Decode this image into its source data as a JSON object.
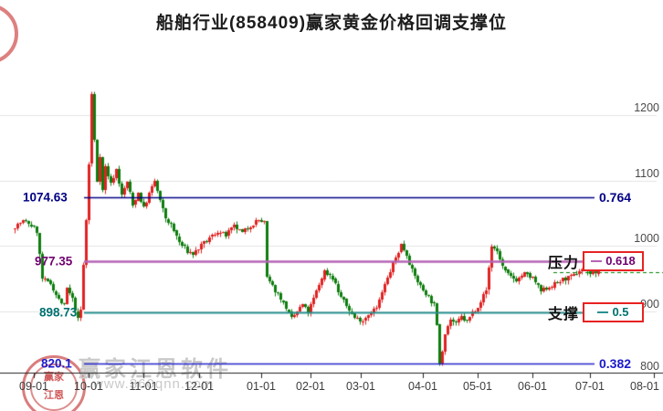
{
  "title": "船舶行业(858409)赢家黄金价格回调支撑位",
  "watermark": {
    "brand": "赢家江恩软件",
    "url": "www.360qnn.com",
    "stamp_top": "赢家",
    "stamp_bottom": "江恩"
  },
  "colors": {
    "up_candle": "#e02222",
    "down_candle": "#0e7d0e",
    "grid": "#e3e3e3",
    "axis": "#222222",
    "tick_text": "#3d3d3d",
    "box_border": "#e82222",
    "last_price_dash": "#008000"
  },
  "chart_data": {
    "type": "candlestick",
    "note_color_convention": "red = up day, green = down day (Chinese convention)",
    "x_ticks": [
      {
        "label": "09-01",
        "px": 37
      },
      {
        "label": "10-01",
        "px": 97
      },
      {
        "label": "11-01",
        "px": 157
      },
      {
        "label": "12-01",
        "px": 218
      },
      {
        "label": "01-01",
        "px": 286
      },
      {
        "label": "02-01",
        "px": 340
      },
      {
        "label": "03-01",
        "px": 395
      },
      {
        "label": "04-01",
        "px": 463
      },
      {
        "label": "05-01",
        "px": 523
      },
      {
        "label": "06-01",
        "px": 583
      },
      {
        "label": "07-01",
        "px": 646
      },
      {
        "label": "08-01",
        "px": 716
      }
    ],
    "y_ticks": [
      800,
      900,
      1000,
      1100,
      1200
    ],
    "y_range_visible": [
      793,
      1255
    ],
    "grid_values": [
      900,
      1000,
      1100,
      1200
    ],
    "levels": [
      {
        "price_label": "1074.63",
        "value": 1074.63,
        "ratio": "0.764",
        "line_color": "#000085",
        "text_color": "#000085",
        "boxed": false,
        "side_label": ""
      },
      {
        "price_label": "977.35",
        "value": 977.35,
        "ratio": "0.618",
        "line_color": "#b565b5",
        "text_color": "#6f006f",
        "boxed": true,
        "side_label": "压力"
      },
      {
        "price_label": "898.73",
        "value": 898.73,
        "ratio": "0.5",
        "line_color": "#2a9090",
        "text_color": "#007070",
        "boxed": true,
        "side_label": "支撑"
      },
      {
        "price_label": "820.1",
        "value": 820.1,
        "ratio": "0.382",
        "line_color": "#2424cc",
        "text_color": "#1a1acc",
        "boxed": false,
        "side_label": ""
      }
    ],
    "last_price": 960,
    "candle_count": 214,
    "close_path_anchors": [
      [
        0,
        1030
      ],
      [
        3,
        1038
      ],
      [
        6,
        1032
      ],
      [
        8,
        1022
      ],
      [
        10,
        950
      ],
      [
        13,
        942
      ],
      [
        16,
        918
      ],
      [
        18,
        908
      ],
      [
        19,
        935
      ],
      [
        21,
        918
      ],
      [
        23,
        888
      ],
      [
        24,
        902
      ],
      [
        26,
        1040
      ],
      [
        27,
        1125
      ],
      [
        28,
        1232
      ],
      [
        29,
        1162
      ],
      [
        30,
        1100
      ],
      [
        31,
        1140
      ],
      [
        32,
        1085
      ],
      [
        33,
        1122
      ],
      [
        35,
        1095
      ],
      [
        37,
        1118
      ],
      [
        39,
        1078
      ],
      [
        41,
        1098
      ],
      [
        43,
        1062
      ],
      [
        45,
        1082
      ],
      [
        47,
        1058
      ],
      [
        49,
        1080
      ],
      [
        51,
        1100
      ],
      [
        53,
        1068
      ],
      [
        55,
        1042
      ],
      [
        57,
        1032
      ],
      [
        60,
        1006
      ],
      [
        63,
        992
      ],
      [
        65,
        988
      ],
      [
        68,
        1000
      ],
      [
        71,
        1012
      ],
      [
        74,
        1022
      ],
      [
        77,
        1016
      ],
      [
        80,
        1030
      ],
      [
        83,
        1020
      ],
      [
        86,
        1032
      ],
      [
        89,
        1040
      ],
      [
        91,
        1036
      ],
      [
        92,
        950
      ],
      [
        94,
        938
      ],
      [
        97,
        920
      ],
      [
        99,
        905
      ],
      [
        101,
        888
      ],
      [
        103,
        900
      ],
      [
        105,
        910
      ],
      [
        107,
        898
      ],
      [
        110,
        930
      ],
      [
        113,
        962
      ],
      [
        116,
        952
      ],
      [
        118,
        930
      ],
      [
        121,
        908
      ],
      [
        124,
        890
      ],
      [
        127,
        886
      ],
      [
        130,
        900
      ],
      [
        132,
        905
      ],
      [
        135,
        940
      ],
      [
        138,
        972
      ],
      [
        141,
        1002
      ],
      [
        143,
        988
      ],
      [
        145,
        962
      ],
      [
        148,
        938
      ],
      [
        151,
        922
      ],
      [
        153,
        910
      ],
      [
        154,
        877
      ],
      [
        155,
        822
      ],
      [
        156,
        840
      ],
      [
        157,
        868
      ],
      [
        159,
        888
      ],
      [
        161,
        880
      ],
      [
        163,
        892
      ],
      [
        165,
        884
      ],
      [
        167,
        898
      ],
      [
        169,
        908
      ],
      [
        172,
        932
      ],
      [
        174,
        1000
      ],
      [
        176,
        992
      ],
      [
        178,
        968
      ],
      [
        180,
        955
      ],
      [
        183,
        948
      ],
      [
        186,
        958
      ],
      [
        189,
        950
      ],
      [
        192,
        930
      ],
      [
        194,
        936
      ],
      [
        197,
        942
      ],
      [
        200,
        948
      ],
      [
        203,
        952
      ],
      [
        206,
        962
      ],
      [
        208,
        968
      ],
      [
        210,
        958
      ],
      [
        213,
        960
      ]
    ]
  }
}
